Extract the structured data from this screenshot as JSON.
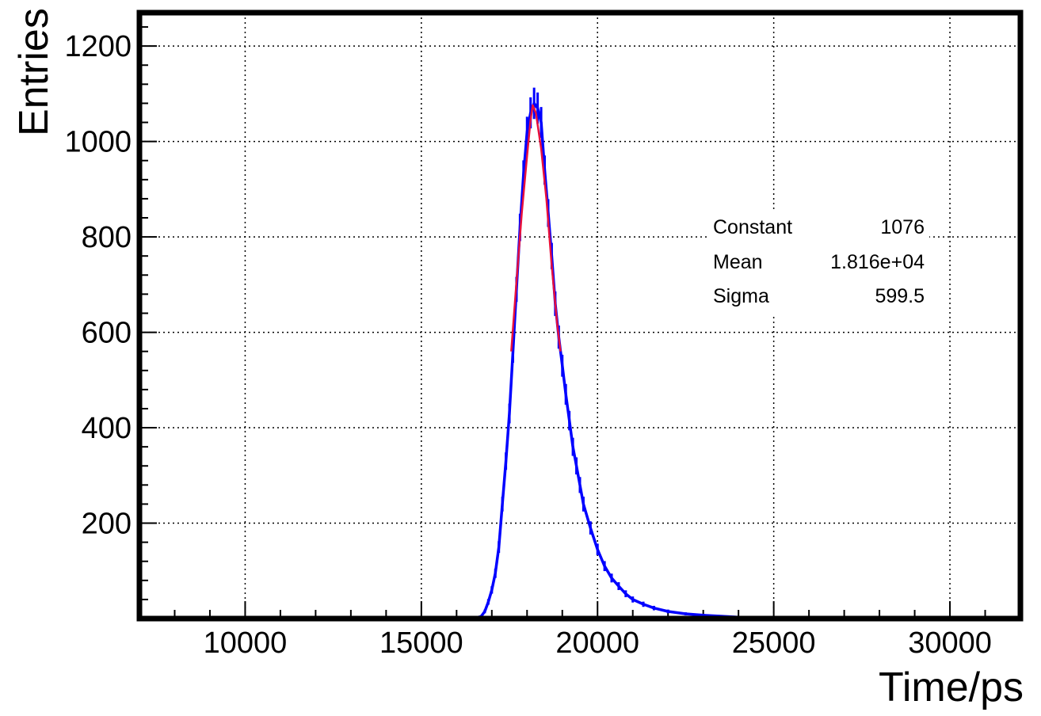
{
  "chart_data": {
    "type": "line",
    "title": "",
    "xlabel": "Time/ps",
    "ylabel": "Entries",
    "xlim": [
      7000,
      32000
    ],
    "ylim": [
      0,
      1270
    ],
    "x_ticks": [
      10000,
      15000,
      20000,
      25000,
      30000
    ],
    "y_ticks": [
      200,
      400,
      600,
      800,
      1000,
      1200
    ],
    "grid": true,
    "series": [
      {
        "color": "#0000ff",
        "style": "histogram-with-errors",
        "x": [
          8500,
          10000,
          12000,
          14000,
          16000,
          16500,
          16700,
          16800,
          16900,
          17000,
          17100,
          17200,
          17300,
          17400,
          17500,
          17600,
          17700,
          17800,
          17900,
          18000,
          18100,
          18200,
          18300,
          18400,
          18500,
          18600,
          18700,
          18800,
          18900,
          19000,
          19100,
          19200,
          19300,
          19400,
          19500,
          19600,
          19800,
          20000,
          20200,
          20400,
          20600,
          20800,
          21000,
          21300,
          21600,
          22000,
          22500,
          23000,
          23500,
          24000,
          25000,
          26000,
          27000,
          28000,
          29000,
          30000
        ],
        "y": [
          0,
          0,
          0,
          0,
          0,
          0,
          5,
          15,
          35,
          60,
          95,
          150,
          240,
          330,
          430,
          560,
          690,
          820,
          930,
          1020,
          1060,
          1080,
          1070,
          1040,
          940,
          850,
          760,
          660,
          590,
          530,
          470,
          415,
          360,
          320,
          280,
          240,
          190,
          145,
          110,
          85,
          68,
          52,
          40,
          30,
          22,
          15,
          10,
          7,
          5,
          3,
          2,
          1,
          1,
          0,
          0,
          0
        ]
      },
      {
        "color": "#e8103c",
        "style": "gaussian-fit",
        "x": [
          17550,
          17700,
          17850,
          18000,
          18100,
          18160,
          18250,
          18400,
          18550,
          18700,
          18850,
          18950
        ],
        "y": [
          560,
          705,
          850,
          970,
          1045,
          1076,
          1060,
          985,
          880,
          740,
          620,
          560
        ]
      }
    ]
  },
  "stats": {
    "rows": [
      {
        "label": "Constant",
        "value": "1076"
      },
      {
        "label": "Mean",
        "value": "1.816e+04"
      },
      {
        "label": "Sigma",
        "value": "599.5"
      }
    ]
  },
  "colors": {
    "histogram": "#0000ff",
    "fit": "#e8103c",
    "frame": "#000000",
    "grid": "#000000"
  }
}
